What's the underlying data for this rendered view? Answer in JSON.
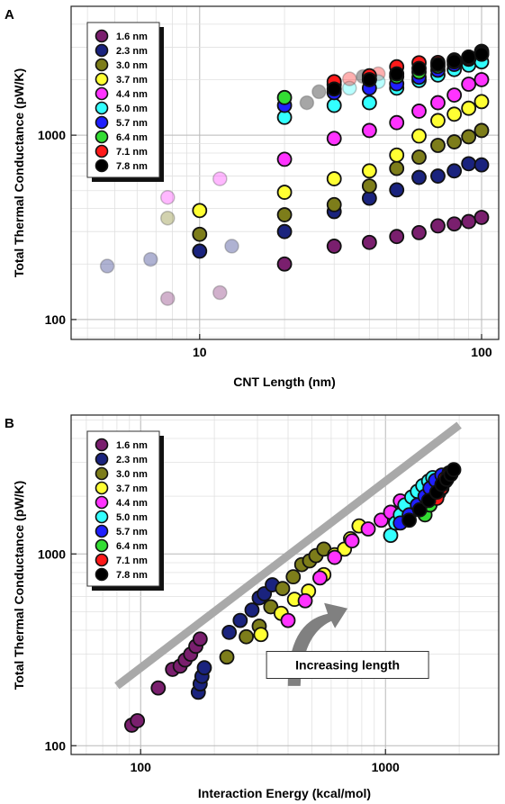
{
  "colors": {
    "1.6 nm": "#7a1f6e",
    "2.3 nm": "#1a237e",
    "3.0 nm": "#7d7d1a",
    "3.7 nm": "#ffff33",
    "4.4 nm": "#ff33ff",
    "5.0 nm": "#33ffff",
    "5.7 nm": "#1f1fff",
    "6.4 nm": "#33dd33",
    "7.1 nm": "#ff1a1a",
    "7.8 nm": "#000000",
    "trend_line": "#a9a9a9",
    "arrow": "#808080"
  },
  "chart_data": [
    {
      "type": "scatter",
      "panel_label": "A",
      "xlabel": "CNT Length (nm)",
      "ylabel": "Total Thermal Conductance (pW/K)",
      "xscale": "log",
      "yscale": "log",
      "xlim": [
        3.5,
        115
      ],
      "ylim": [
        78,
        5000
      ],
      "x_ticks": [
        10,
        100
      ],
      "x_tick_labels": [
        "10",
        "100"
      ],
      "y_ticks": [
        100,
        1000
      ],
      "y_tick_labels": [
        "100",
        "1000"
      ],
      "grid": true,
      "legend": {
        "position": "top-left",
        "entries": [
          "1.6 nm",
          "2.3 nm",
          "3.0 nm",
          "3.7 nm",
          "4.4 nm",
          "5.0 nm",
          "5.7 nm",
          "6.4 nm",
          "7.1 nm",
          "7.8 nm"
        ]
      },
      "series": [
        {
          "name": "1.6 nm",
          "x": [
            20,
            30,
            40,
            50,
            60,
            70,
            80,
            90,
            100
          ],
          "y": [
            200,
            250,
            262,
            282,
            296,
            322,
            330,
            340,
            358
          ]
        },
        {
          "name": "2.3 nm",
          "x": [
            10,
            20,
            30,
            40,
            50,
            60,
            70,
            80,
            90,
            100
          ],
          "y": [
            235,
            300,
            385,
            455,
            505,
            590,
            600,
            640,
            700,
            690
          ]
        },
        {
          "name": "3.0 nm",
          "x": [
            10,
            20,
            30,
            40,
            50,
            60,
            70,
            80,
            90,
            100
          ],
          "y": [
            290,
            370,
            420,
            530,
            660,
            760,
            880,
            920,
            980,
            1060
          ]
        },
        {
          "name": "3.7 nm",
          "x": [
            10,
            20,
            30,
            40,
            50,
            60,
            70,
            80,
            90,
            100
          ],
          "y": [
            390,
            490,
            580,
            640,
            780,
            990,
            1200,
            1300,
            1400,
            1520
          ]
        },
        {
          "name": "4.4 nm",
          "x": [
            20,
            30,
            40,
            50,
            60,
            70,
            80,
            90,
            100
          ],
          "y": [
            740,
            960,
            1060,
            1170,
            1350,
            1500,
            1650,
            1890,
            2000
          ]
        },
        {
          "name": "5.0 nm",
          "x": [
            20,
            30,
            40,
            50,
            60,
            70,
            80,
            90,
            100
          ],
          "y": [
            1250,
            1450,
            1500,
            1800,
            1980,
            2120,
            2270,
            2400,
            2500
          ]
        },
        {
          "name": "5.7 nm",
          "x": [
            20,
            30,
            40,
            50,
            60,
            70,
            80,
            90,
            100
          ],
          "y": [
            1450,
            1700,
            1800,
            1900,
            2060,
            2250,
            2420,
            2580,
            2750
          ]
        },
        {
          "name": "6.4 nm",
          "x": [
            20,
            30,
            40,
            50,
            60,
            70,
            80,
            90,
            100
          ],
          "y": [
            1600,
            1880,
            2000,
            2080,
            2200,
            2360,
            2500,
            2650,
            2850
          ]
        },
        {
          "name": "7.1 nm",
          "x": [
            30,
            40,
            50,
            60,
            70,
            80,
            90,
            100
          ],
          "y": [
            1950,
            2100,
            2350,
            2470,
            2480,
            2560,
            2600,
            2800
          ]
        },
        {
          "name": "7.8 nm",
          "x": [
            30,
            40,
            50,
            60,
            70,
            80,
            90,
            100
          ],
          "y": [
            1780,
            2000,
            2150,
            2300,
            2420,
            2520,
            2650,
            2750
          ]
        }
      ],
      "faded_points": [
        {
          "series": "2.3 nm",
          "x": 4.7,
          "y": 195
        },
        {
          "series": "2.3 nm",
          "x": 6.7,
          "y": 212
        },
        {
          "series": "2.3 nm",
          "x": 13,
          "y": 250
        },
        {
          "series": "3.0 nm",
          "x": 7.7,
          "y": 355
        },
        {
          "series": "4.4 nm",
          "x": 7.7,
          "y": 460
        },
        {
          "series": "4.4 nm",
          "x": 11.8,
          "y": 580
        },
        {
          "series": "1.6 nm",
          "x": 7.7,
          "y": 130
        },
        {
          "series": "1.6 nm",
          "x": 11.8,
          "y": 140
        },
        {
          "series": "7.8 nm",
          "x": 24,
          "y": 1500
        },
        {
          "series": "7.8 nm",
          "x": 26.5,
          "y": 1720
        },
        {
          "series": "5.0 nm",
          "x": 30,
          "y": 1700
        },
        {
          "series": "7.1 nm",
          "x": 30,
          "y": 1920
        },
        {
          "series": "5.0 nm",
          "x": 34,
          "y": 1800
        },
        {
          "series": "7.1 nm",
          "x": 34,
          "y": 2020
        },
        {
          "series": "7.8 nm",
          "x": 38,
          "y": 2080
        },
        {
          "series": "7.1 nm",
          "x": 43,
          "y": 2150
        },
        {
          "series": "5.0 nm",
          "x": 43,
          "y": 1950
        }
      ]
    },
    {
      "type": "scatter",
      "panel_label": "B",
      "xlabel": "Interaction Energy (kcal/mol)",
      "ylabel": "Total Thermal Conductance (pW/K)",
      "xscale": "log",
      "yscale": "log",
      "xlim": [
        52,
        2900
      ],
      "ylim": [
        90,
        5300
      ],
      "x_ticks": [
        100,
        1000
      ],
      "x_tick_labels": [
        "100",
        "1000"
      ],
      "y_ticks": [
        100,
        1000
      ],
      "y_tick_labels": [
        "100",
        "1000"
      ],
      "grid": true,
      "legend": {
        "position": "top-left",
        "entries": [
          "1.6 nm",
          "2.3 nm",
          "3.0 nm",
          "3.7 nm",
          "4.4 nm",
          "5.0 nm",
          "5.7 nm",
          "6.4 nm",
          "7.1 nm",
          "7.8 nm"
        ]
      },
      "annotations": [
        {
          "text": "Increasing length",
          "x": 700,
          "y": 250
        },
        {
          "type": "trend_line",
          "x": [
            80,
            2000
          ],
          "y": [
            205,
            4700
          ]
        },
        {
          "type": "curved_arrow",
          "from": [
            420,
            205
          ],
          "to": [
            700,
            520
          ]
        }
      ],
      "series": [
        {
          "name": "1.6 nm",
          "x": [
            92,
            97,
            118,
            135,
            145,
            152,
            160,
            168,
            175
          ],
          "y": [
            128,
            135,
            200,
            250,
            260,
            280,
            300,
            330,
            360
          ]
        },
        {
          "name": "2.3 nm",
          "x": [
            172,
            175,
            178,
            182,
            230,
            255,
            285,
            305,
            320,
            345
          ],
          "y": [
            190,
            210,
            230,
            255,
            390,
            450,
            510,
            590,
            620,
            690
          ]
        },
        {
          "name": "3.0 nm",
          "x": [
            225,
            270,
            305,
            340,
            380,
            420,
            455,
            490,
            520,
            560
          ],
          "y": [
            290,
            370,
            420,
            530,
            660,
            760,
            880,
            920,
            980,
            1060
          ]
        },
        {
          "name": "3.7 nm",
          "x": [
            310,
            375,
            425,
            485,
            560,
            620,
            680,
            720,
            780
          ],
          "y": [
            380,
            490,
            580,
            640,
            780,
            990,
            1060,
            1200,
            1400
          ]
        },
        {
          "name": "4.4 nm",
          "x": [
            400,
            470,
            540,
            620,
            730,
            850,
            960,
            1050,
            1150
          ],
          "y": [
            450,
            570,
            750,
            960,
            1170,
            1350,
            1500,
            1650,
            1890
          ]
        },
        {
          "name": "5.0 nm",
          "x": [
            1050,
            1100,
            1150,
            1200,
            1280,
            1350,
            1420,
            1500,
            1560
          ],
          "y": [
            1250,
            1450,
            1600,
            1800,
            1980,
            2120,
            2270,
            2400,
            2500
          ]
        },
        {
          "name": "5.7 nm",
          "x": [
            1150,
            1250,
            1350,
            1450,
            1520,
            1600,
            1700
          ],
          "y": [
            1450,
            1600,
            1800,
            2000,
            2200,
            2420,
            2580
          ]
        },
        {
          "name": "6.4 nm",
          "x": [
            1450,
            1520,
            1600,
            1650,
            1700,
            1760,
            1820
          ],
          "y": [
            1600,
            1800,
            2000,
            2080,
            2200,
            2400,
            2650
          ]
        },
        {
          "name": "7.1 nm",
          "x": [
            1620,
            1690,
            1750,
            1820
          ],
          "y": [
            1950,
            2200,
            2470,
            2600
          ]
        },
        {
          "name": "7.8 nm",
          "x": [
            1250,
            1380,
            1500,
            1620,
            1700,
            1780,
            1850,
            1900
          ],
          "y": [
            1500,
            1700,
            1900,
            2100,
            2300,
            2450,
            2600,
            2750
          ]
        }
      ]
    }
  ]
}
